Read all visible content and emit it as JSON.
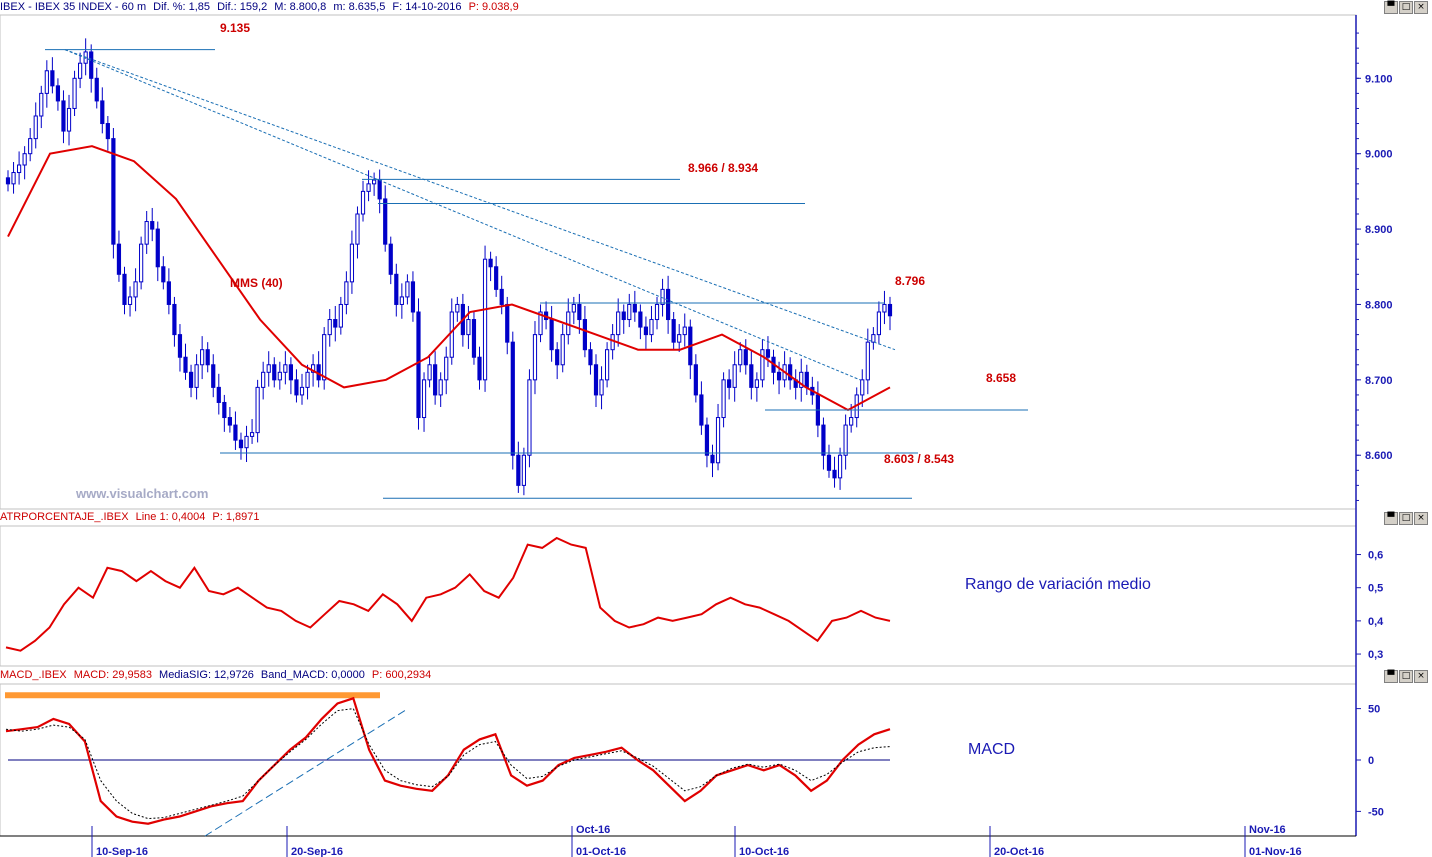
{
  "header_main": {
    "symbol": "IBEX - IBEX 35 INDEX - 60 m",
    "dif_pct": "Dif. %: 1,85",
    "dif": "Dif.: 159,2",
    "max": "M: 8.800,8",
    "min": "m: 8.635,5",
    "date": "F: 14-10-2016",
    "price": "P: 9.038,9"
  },
  "header_atr": {
    "name": "ATRPORCENTAJE_.IBEX",
    "line1": "Line 1: 0,4004",
    "price": "P: 1,8971"
  },
  "header_macd": {
    "name": "MACD_.IBEX",
    "macd": "MACD: 29,9583",
    "signal": "MediaSIG: 12,9726",
    "band": "Band_MACD: 0,0000",
    "price": "P: 600,2934"
  },
  "window_buttons": [
    "▀",
    "□",
    "×"
  ],
  "annotations": {
    "high": "9.135",
    "resist": "8.966 / 8.934",
    "mms": "MMS (40)",
    "r2": "8.796",
    "s1": "8.658",
    "s2": "8.603 / 8.543"
  },
  "watermark": "www.visualchart.com",
  "atr_title": "Rango de variación medio",
  "macd_title": "MACD",
  "colors": {
    "candle": "#0000c8",
    "ma": "#e00000",
    "level": "#1a6fb4",
    "axis": "#1a1ab4",
    "macd_highlight": "#ff9933"
  },
  "chart_data": [
    {
      "type": "candlestick",
      "ylim": [
        8530,
        9180
      ],
      "yticks": [
        "9.100",
        "9.000",
        "8.900",
        "8.800",
        "8.700",
        "8.600"
      ],
      "close": [
        8960,
        8975,
        8985,
        9000,
        9020,
        9050,
        9080,
        9110,
        9090,
        9070,
        9030,
        9060,
        9100,
        9120,
        9135,
        9100,
        9070,
        9040,
        9020,
        8880,
        8840,
        8800,
        8810,
        8830,
        8880,
        8910,
        8900,
        8850,
        8830,
        8800,
        8760,
        8730,
        8710,
        8690,
        8720,
        8740,
        8720,
        8690,
        8670,
        8650,
        8640,
        8620,
        8610,
        8625,
        8630,
        8690,
        8710,
        8720,
        8700,
        8710,
        8720,
        8700,
        8680,
        8690,
        8710,
        8720,
        8700,
        8760,
        8780,
        8770,
        8800,
        8830,
        8880,
        8920,
        8950,
        8960,
        8965,
        8940,
        8880,
        8840,
        8800,
        8810,
        8830,
        8790,
        8650,
        8700,
        8720,
        8680,
        8700,
        8730,
        8790,
        8800,
        8760,
        8780,
        8730,
        8700,
        8860,
        8850,
        8820,
        8800,
        8750,
        8600,
        8560,
        8600,
        8700,
        8760,
        8790,
        8780,
        8740,
        8720,
        8760,
        8790,
        8800,
        8780,
        8740,
        8720,
        8680,
        8700,
        8740,
        8760,
        8790,
        8780,
        8800,
        8790,
        8770,
        8760,
        8780,
        8800,
        8820,
        8780,
        8750,
        8760,
        8770,
        8720,
        8680,
        8640,
        8600,
        8590,
        8650,
        8700,
        8690,
        8720,
        8740,
        8720,
        8690,
        8700,
        8740,
        8730,
        8710,
        8700,
        8720,
        8700,
        8690,
        8710,
        8690,
        8680,
        8640,
        8600,
        8580,
        8570,
        8600,
        8640,
        8650,
        8680,
        8700,
        8750,
        8760,
        8790,
        8800,
        8785
      ],
      "ma_40_sample": [
        8890,
        9000,
        9010,
        8990,
        8940,
        8860,
        8780,
        8720,
        8690,
        8700,
        8730,
        8790,
        8800,
        8780,
        8760,
        8740,
        8740,
        8760,
        8730,
        8690,
        8660,
        8690
      ],
      "levels": [
        {
          "label": "9.135",
          "value": 9138
        },
        {
          "label": "8.966 / 8.934",
          "values": [
            8966,
            8934
          ]
        },
        {
          "label": "8.796",
          "value": 8802
        },
        {
          "label": "8.658",
          "value": 8660
        },
        {
          "label": "8.603 / 8.543",
          "values": [
            8603,
            8543
          ]
        }
      ],
      "x_labels": [
        "10-Sep-16",
        "20-Sep-16",
        "01-Oct-16",
        "10-Oct-16",
        "20-Oct-16",
        "01-Nov-16"
      ],
      "x_upper_labels": [
        "Oct-16",
        "Nov-16"
      ]
    },
    {
      "type": "line",
      "title": "ATRPORCENTAJE_.IBEX",
      "ylim": [
        0.27,
        0.68
      ],
      "yticks": [
        "0,6",
        "0,5",
        "0,4",
        "0,3"
      ],
      "values": [
        0.32,
        0.31,
        0.34,
        0.38,
        0.45,
        0.5,
        0.47,
        0.56,
        0.55,
        0.52,
        0.55,
        0.52,
        0.5,
        0.56,
        0.49,
        0.48,
        0.5,
        0.47,
        0.44,
        0.43,
        0.4,
        0.38,
        0.42,
        0.46,
        0.45,
        0.43,
        0.48,
        0.45,
        0.4,
        0.47,
        0.48,
        0.5,
        0.54,
        0.49,
        0.47,
        0.53,
        0.63,
        0.62,
        0.65,
        0.63,
        0.62,
        0.44,
        0.4,
        0.38,
        0.39,
        0.41,
        0.4,
        0.41,
        0.42,
        0.45,
        0.47,
        0.45,
        0.44,
        0.42,
        0.4,
        0.37,
        0.34,
        0.4,
        0.41,
        0.43,
        0.41,
        0.4
      ]
    },
    {
      "type": "line",
      "title": "MACD_.IBEX",
      "ylim": [
        -72,
        72
      ],
      "yticks": [
        "50",
        "0",
        "-50"
      ],
      "series": [
        {
          "name": "MACD",
          "values": [
            28,
            30,
            32,
            40,
            35,
            18,
            -40,
            -55,
            -60,
            -62,
            -58,
            -55,
            -50,
            -45,
            -42,
            -40,
            -20,
            -5,
            10,
            22,
            40,
            55,
            60,
            10,
            -20,
            -25,
            -28,
            -30,
            -15,
            10,
            20,
            25,
            -15,
            -25,
            -20,
            -5,
            2,
            5,
            8,
            12,
            0,
            -10,
            -25,
            -40,
            -30,
            -15,
            -10,
            -5,
            -10,
            -5,
            -15,
            -30,
            -20,
            0,
            15,
            25,
            30
          ]
        },
        {
          "name": "MediaSIG",
          "values": [
            30,
            28,
            30,
            34,
            32,
            20,
            -20,
            -40,
            -52,
            -57,
            -56,
            -52,
            -48,
            -44,
            -40,
            -35,
            -20,
            -5,
            8,
            20,
            35,
            48,
            50,
            15,
            -10,
            -20,
            -24,
            -26,
            -16,
            5,
            15,
            18,
            -5,
            -18,
            -16,
            -6,
            0,
            3,
            6,
            9,
            2,
            -6,
            -18,
            -30,
            -26,
            -15,
            -8,
            -4,
            -7,
            -4,
            -10,
            -20,
            -14,
            -2,
            8,
            12,
            13
          ]
        }
      ],
      "zero_line": 0
    }
  ]
}
